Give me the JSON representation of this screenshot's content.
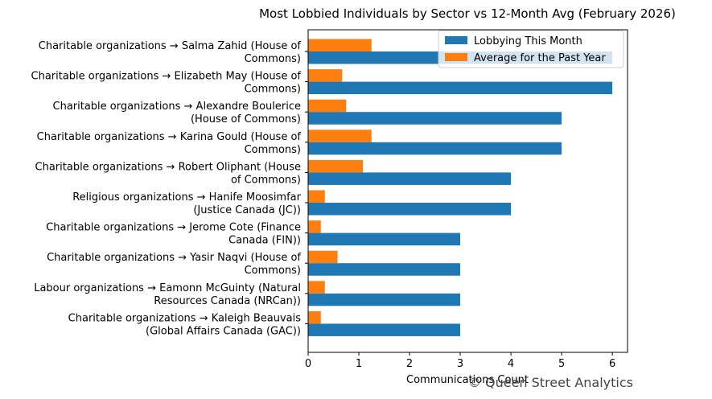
{
  "chart_data": {
    "type": "bar",
    "orientation": "horizontal",
    "title": "Most Lobbied Individuals by Sector vs 12-Month Avg (February 2026)",
    "xlabel": "Communications Count",
    "ylabel": "",
    "xlim": [
      0,
      6.3
    ],
    "xticks": [
      0,
      1,
      2,
      3,
      4,
      5,
      6
    ],
    "grid": false,
    "legend_position": "top-right",
    "categories": [
      [
        "Charitable organizations → Salma Zahid (House of",
        "Commons)"
      ],
      [
        "Charitable organizations → Elizabeth May (House of",
        "Commons)"
      ],
      [
        "Charitable organizations → Alexandre Boulerice",
        "(House of Commons)"
      ],
      [
        "Charitable organizations → Karina Gould (House of",
        "Commons)"
      ],
      [
        "Charitable organizations → Robert Oliphant (House",
        "of Commons)"
      ],
      [
        "Religious organizations → Hanife Moosimfar",
        "(Justice Canada (JC))"
      ],
      [
        "Charitable organizations → Jerome Cote (Finance",
        "Canada (FIN))"
      ],
      [
        "Charitable organizations → Yasir Naqvi (House of",
        "Commons)"
      ],
      [
        "Labour organizations → Eamonn McGuinty (Natural",
        "Resources Canada (NRCan))"
      ],
      [
        "Charitable organizations → Kaleigh Beauvais",
        "(Global Affairs Canada (GAC))"
      ]
    ],
    "series": [
      {
        "name": "Lobbying This Month",
        "color": "#1f77b4",
        "values": [
          6,
          6,
          5,
          5,
          4,
          4,
          3,
          3,
          3,
          3
        ]
      },
      {
        "name": "Average for the Past Year",
        "color": "#ff7f0e",
        "values": [
          1.25,
          0.67,
          0.75,
          1.25,
          1.08,
          0.33,
          0.25,
          0.58,
          0.33,
          0.25
        ]
      }
    ]
  },
  "watermark": "© Queen Street Analytics"
}
